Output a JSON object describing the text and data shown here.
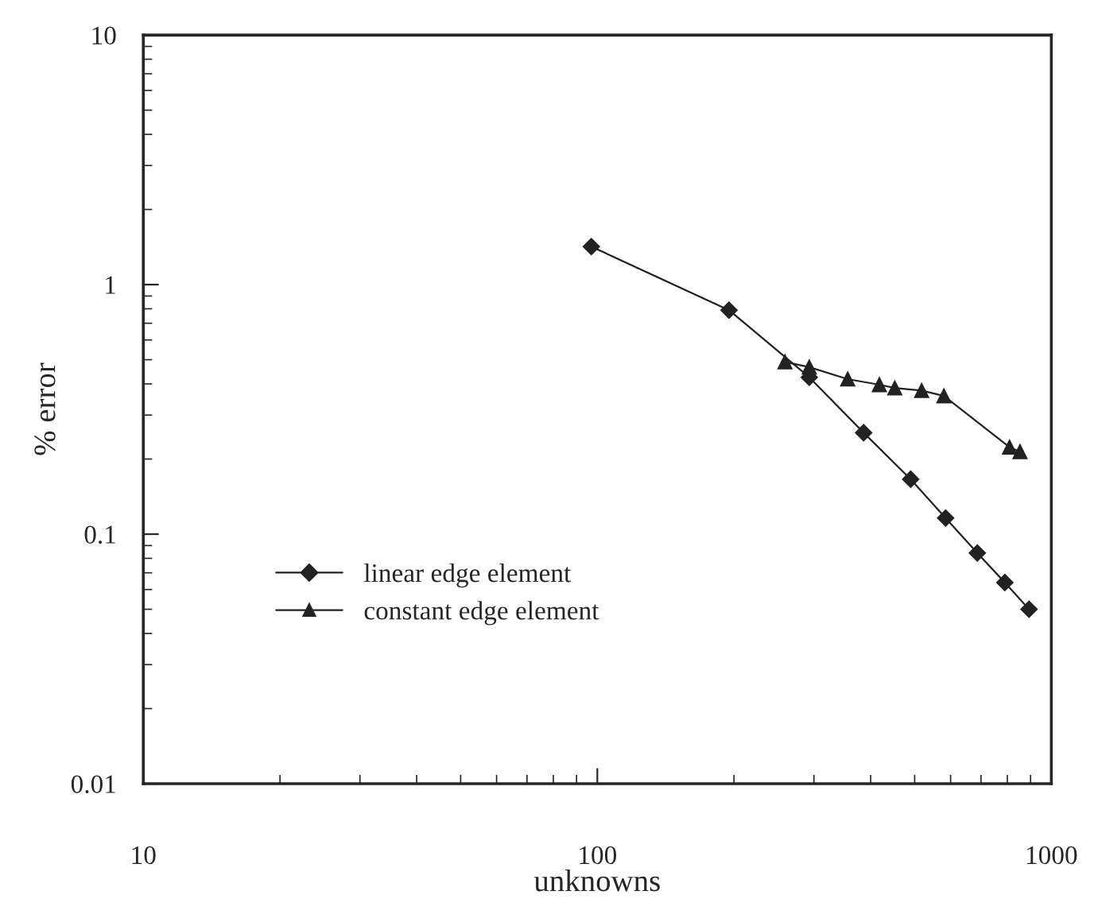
{
  "chart_data": {
    "type": "line",
    "xlabel": "unknowns",
    "ylabel": "% error",
    "log": "xy",
    "xlim": [
      10,
      1000
    ],
    "xticks": [
      10,
      100,
      1000
    ],
    "ylim": [
      0.01,
      10
    ],
    "yticks": [
      0.01,
      0.1,
      1,
      10
    ],
    "grid": false,
    "legend": "bottom left",
    "series": [
      {
        "name": "linear edge element",
        "color": "#222222",
        "marker": "diamond",
        "x": [
          97,
          195,
          293,
          386,
          490,
          585,
          687,
          790,
          893
        ],
        "values": [
          1.42,
          0.79,
          0.425,
          0.255,
          0.166,
          0.116,
          0.084,
          0.064,
          0.05
        ]
      },
      {
        "name": "constant edge element",
        "color": "#222222",
        "marker": "triangle",
        "x": [
          259,
          293,
          356,
          418,
          452,
          518,
          580,
          809,
          853
        ],
        "values": [
          0.49,
          0.467,
          0.418,
          0.397,
          0.385,
          0.376,
          0.358,
          0.223,
          0.214
        ]
      }
    ]
  }
}
